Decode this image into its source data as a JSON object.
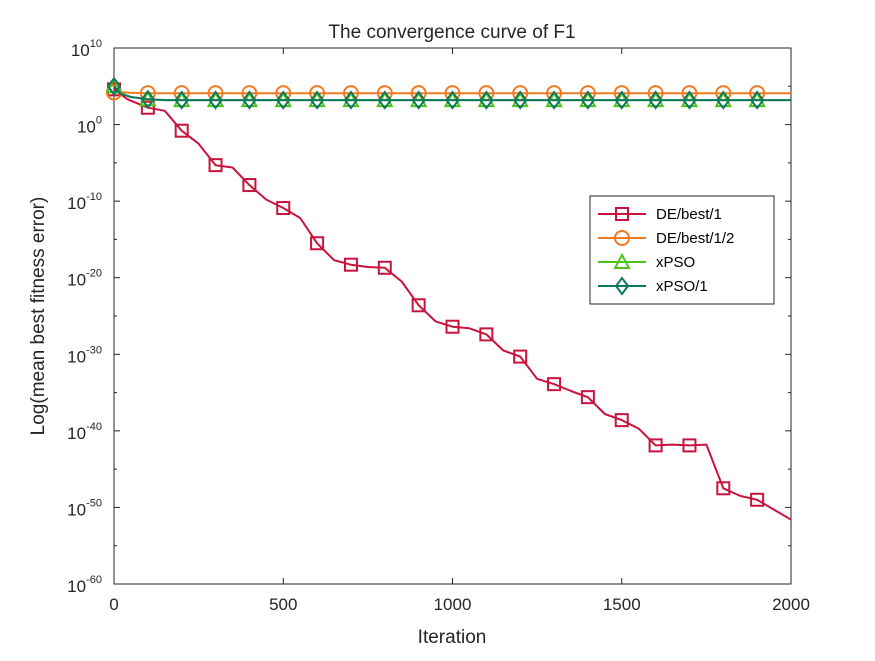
{
  "chart_data": {
    "type": "line",
    "title": "The convergence curve of F1",
    "xlabel": "Iteration",
    "ylabel": "Log(mean best fitness error)",
    "xlim": [
      0,
      2000
    ],
    "ylim_log10": [
      -60,
      10
    ],
    "y_scale": "log",
    "x_ticks": [
      "0",
      "500",
      "1000",
      "1500",
      "2000"
    ],
    "x_tick_values": [
      0,
      500,
      1000,
      1500,
      2000
    ],
    "y_ticks": [
      {
        "base": "10",
        "exp": "10",
        "value": 10
      },
      {
        "base": "10",
        "exp": "0",
        "value": 0
      },
      {
        "base": "10",
        "exp": "-10",
        "value": -10
      },
      {
        "base": "10",
        "exp": "-20",
        "value": -20
      },
      {
        "base": "10",
        "exp": "-30",
        "value": -30
      },
      {
        "base": "10",
        "exp": "-40",
        "value": -40
      },
      {
        "base": "10",
        "exp": "-50",
        "value": -50
      },
      {
        "base": "10",
        "exp": "-60",
        "value": -60
      }
    ],
    "grid": false,
    "legend_position": "right",
    "series": [
      {
        "name": "DE/best/1",
        "color": "#c8143c",
        "marker": "square",
        "points": [
          [
            0,
            4.6
          ],
          [
            40,
            3.3
          ],
          [
            100,
            2.2
          ],
          [
            150,
            1.8
          ],
          [
            200,
            -0.8
          ],
          [
            250,
            -2.5
          ],
          [
            300,
            -5.3
          ],
          [
            350,
            -5.6
          ],
          [
            400,
            -7.9
          ],
          [
            450,
            -9.8
          ],
          [
            500,
            -10.9
          ],
          [
            550,
            -12.2
          ],
          [
            600,
            -15.5
          ],
          [
            650,
            -17.7
          ],
          [
            700,
            -18.3
          ],
          [
            750,
            -18.6
          ],
          [
            800,
            -18.7
          ],
          [
            850,
            -20.5
          ],
          [
            900,
            -23.6
          ],
          [
            950,
            -25.7
          ],
          [
            1000,
            -26.4
          ],
          [
            1050,
            -26.6
          ],
          [
            1100,
            -27.4
          ],
          [
            1150,
            -29.5
          ],
          [
            1200,
            -30.3
          ],
          [
            1250,
            -33.2
          ],
          [
            1300,
            -33.9
          ],
          [
            1350,
            -34.8
          ],
          [
            1400,
            -35.6
          ],
          [
            1450,
            -37.8
          ],
          [
            1500,
            -38.6
          ],
          [
            1550,
            -39.7
          ],
          [
            1600,
            -41.9
          ],
          [
            1650,
            -41.8
          ],
          [
            1700,
            -41.9
          ],
          [
            1750,
            -41.8
          ],
          [
            1800,
            -47.5
          ],
          [
            1850,
            -48.5
          ],
          [
            1900,
            -49.0
          ],
          [
            1950,
            -50.3
          ],
          [
            2000,
            -51.6
          ]
        ],
        "marker_x": [
          0,
          100,
          200,
          300,
          400,
          500,
          600,
          700,
          800,
          900,
          1000,
          1100,
          1200,
          1300,
          1400,
          1500,
          1600,
          1700,
          1800,
          1900
        ]
      },
      {
        "name": "DE/best/1/2",
        "color": "#f07a20",
        "marker": "circle",
        "points": [
          [
            0,
            4.2
          ],
          [
            20,
            4.2
          ],
          [
            100,
            4.1
          ],
          [
            2000,
            4.1
          ]
        ],
        "marker_x": [
          0,
          100,
          200,
          300,
          400,
          500,
          600,
          700,
          800,
          900,
          1000,
          1100,
          1200,
          1300,
          1400,
          1500,
          1600,
          1700,
          1800,
          1900
        ]
      },
      {
        "name": "xPSO",
        "color": "#4cc41a",
        "marker": "triangle",
        "points": [
          [
            0,
            5.0
          ],
          [
            20,
            4.1
          ],
          [
            50,
            3.6
          ],
          [
            100,
            3.3
          ],
          [
            150,
            3.2
          ],
          [
            2000,
            3.2
          ]
        ],
        "marker_x": [
          0,
          100,
          200,
          300,
          400,
          500,
          600,
          700,
          800,
          900,
          1000,
          1100,
          1200,
          1300,
          1400,
          1500,
          1600,
          1700,
          1800,
          1900
        ]
      },
      {
        "name": "xPSO/1",
        "color": "#0f7860",
        "marker": "diamond",
        "points": [
          [
            0,
            5.0
          ],
          [
            20,
            4.0
          ],
          [
            50,
            3.6
          ],
          [
            100,
            3.3
          ],
          [
            150,
            3.2
          ],
          [
            2000,
            3.2
          ]
        ],
        "marker_x": [
          0,
          100,
          200,
          300,
          400,
          500,
          600,
          700,
          800,
          900,
          1000,
          1100,
          1200,
          1300,
          1400,
          1500,
          1600,
          1700,
          1800,
          1900
        ]
      }
    ]
  }
}
